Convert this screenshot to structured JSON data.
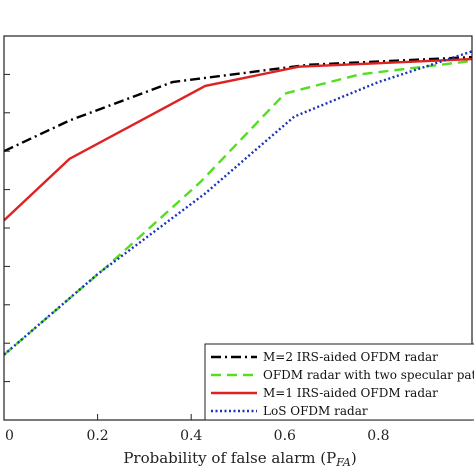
{
  "chart_data": {
    "type": "line",
    "title": "",
    "xlabel": "Probability of false alarm (P",
    "xlabel_sub": "FA",
    "xlabel_close": ")",
    "ylabel": "",
    "xlim": [
      0,
      1
    ],
    "ylim": [
      0,
      1
    ],
    "x_ticks": [
      0,
      0.2,
      0.4,
      0.6,
      0.8
    ],
    "x_tick_labels": [
      "0",
      "0.2",
      "0.4",
      "0.6",
      "0.8"
    ],
    "grid": false,
    "legend_position": "bottom-right",
    "series": [
      {
        "name": "M=2 IRS-aided OFDM radar",
        "color": "#000000",
        "dash": "dashdot",
        "x": [
          0,
          0.14,
          0.36,
          0.65,
          1.0
        ],
        "y": [
          0.7,
          0.78,
          0.88,
          0.925,
          0.945
        ]
      },
      {
        "name": "OFDM radar with two specular paths",
        "color": "#55dd22",
        "dash": "dashed",
        "x": [
          0,
          0.22,
          0.42,
          0.6,
          0.76,
          1.0
        ],
        "y": [
          0.17,
          0.4,
          0.62,
          0.85,
          0.9,
          0.935
        ]
      },
      {
        "name": "M=1 IRS-aided OFDM radar",
        "color": "#dd2222",
        "dash": "solid",
        "x": [
          0,
          0.14,
          0.43,
          0.63,
          1.0
        ],
        "y": [
          0.52,
          0.68,
          0.87,
          0.92,
          0.94
        ]
      },
      {
        "name": "LoS OFDM radar",
        "color": "#1a33bb",
        "dash": "dotted",
        "x": [
          0,
          0.2,
          0.43,
          0.62,
          0.8,
          1.0
        ],
        "y": [
          0.17,
          0.38,
          0.59,
          0.79,
          0.88,
          0.96
        ]
      }
    ]
  }
}
